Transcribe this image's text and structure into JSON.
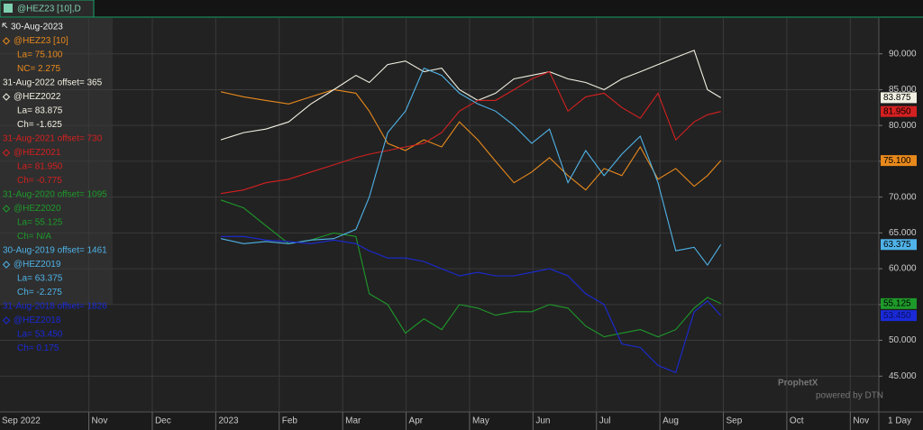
{
  "tab": {
    "label": "@HEZ23 [10],D"
  },
  "chart_data": {
    "type": "line",
    "date": "30-Aug-2023",
    "interval": "1 Day",
    "watermark": {
      "brand": "ProphetX",
      "sub": "powered by DTN"
    },
    "grid": true,
    "xlim": [
      0.6,
      14.45
    ],
    "xticks": [
      {
        "value": 0,
        "label": "Sep 2022"
      },
      {
        "value": 2,
        "label": "Nov"
      },
      {
        "value": 3,
        "label": "Dec"
      },
      {
        "value": 4,
        "label": "2023"
      },
      {
        "value": 5,
        "label": "Feb"
      },
      {
        "value": 6,
        "label": "Mar"
      },
      {
        "value": 7,
        "label": "Apr"
      },
      {
        "value": 8,
        "label": "May"
      },
      {
        "value": 9,
        "label": "Jun"
      },
      {
        "value": 10,
        "label": "Jul"
      },
      {
        "value": 11,
        "label": "Aug"
      },
      {
        "value": 12,
        "label": "Sep"
      },
      {
        "value": 13,
        "label": "Oct"
      },
      {
        "value": 14,
        "label": "Nov"
      }
    ],
    "ylim": [
      40,
      95
    ],
    "yticks": [
      {
        "value": 45,
        "label": "45.000"
      },
      {
        "value": 50,
        "label": "50.000"
      },
      {
        "value": 55,
        "label": "55.000"
      },
      {
        "value": 60,
        "label": "60.000"
      },
      {
        "value": 65,
        "label": "65.000"
      },
      {
        "value": 70,
        "label": "70.000"
      },
      {
        "value": 75,
        "label": "75.000"
      },
      {
        "value": 80,
        "label": "80.000"
      },
      {
        "value": 85,
        "label": "85.000"
      },
      {
        "value": 90,
        "label": "90.000"
      }
    ],
    "x": [
      4.08,
      4.44,
      4.79,
      5.15,
      5.5,
      5.86,
      6.21,
      6.42,
      6.71,
      6.99,
      7.28,
      7.56,
      7.84,
      8.13,
      8.41,
      8.7,
      8.98,
      9.26,
      9.55,
      9.83,
      10.12,
      10.4,
      10.69,
      10.97,
      11.25,
      11.54,
      11.75,
      11.96
    ],
    "series": [
      {
        "name": "@HEZ23 [10]",
        "color": "#e8891c",
        "stats": [
          "La= 75.100",
          "NC= 2.275"
        ],
        "tag": "75.100",
        "values": [
          84.7,
          84.0,
          83.5,
          83.0,
          84.0,
          85.0,
          84.5,
          82.0,
          77.5,
          76.5,
          78.0,
          77.0,
          80.5,
          78.0,
          75.0,
          72.0,
          73.5,
          75.5,
          73.0,
          71.0,
          74.0,
          73.0,
          77.0,
          72.5,
          74.0,
          71.5,
          73.0,
          75.1
        ]
      },
      {
        "name": "@HEZ2022",
        "color": "#f2f0e2",
        "offset_line": "31-Aug-2022 offset= 365",
        "stats": [
          "La= 83.875",
          "Ch= -1.625"
        ],
        "tag": "83.875",
        "values": [
          78.0,
          79.0,
          79.5,
          80.5,
          83.0,
          85.0,
          87.0,
          86.0,
          88.5,
          89.0,
          87.5,
          88.0,
          85.0,
          83.5,
          84.5,
          86.5,
          87.0,
          87.5,
          86.5,
          86.0,
          85.0,
          86.5,
          87.5,
          88.5,
          89.5,
          90.5,
          85.0,
          83.875
        ]
      },
      {
        "name": "@HEZ2021",
        "color": "#d42020",
        "offset_line": "31-Aug-2021 offset= 730",
        "stats": [
          "La= 81.950",
          "Ch= -0.775"
        ],
        "tag": "81.950",
        "values": [
          70.5,
          71.0,
          72.0,
          72.5,
          73.5,
          74.5,
          75.5,
          76.0,
          76.5,
          77.0,
          77.5,
          79.0,
          82.0,
          83.5,
          83.5,
          85.0,
          86.5,
          87.5,
          82.0,
          84.0,
          84.5,
          82.5,
          81.0,
          84.5,
          78.0,
          80.5,
          81.5,
          81.95
        ]
      },
      {
        "name": "@HEZ2020",
        "color": "#1e9a2a",
        "offset_line": "31-Aug-2020 offset= 1095",
        "stats": [
          "La= 55.125",
          "Ch= N/A"
        ],
        "tag": "55.125",
        "values": [
          69.6,
          68.5,
          66.0,
          63.5,
          64.0,
          65.0,
          64.5,
          56.5,
          55.0,
          51.0,
          53.0,
          51.5,
          55.0,
          54.5,
          53.5,
          54.0,
          54.0,
          55.0,
          54.5,
          52.0,
          50.5,
          51.0,
          51.5,
          50.5,
          51.5,
          54.5,
          56.0,
          55.125
        ]
      },
      {
        "name": "@HEZ2019",
        "color": "#4fb3e8",
        "offset_line": "30-Aug-2019 offset= 1461",
        "stats": [
          "La= 63.375",
          "Ch= -2.275"
        ],
        "tag": "63.375",
        "values": [
          64.2,
          63.5,
          63.8,
          63.5,
          64.0,
          64.2,
          65.5,
          70.0,
          79.0,
          82.0,
          88.0,
          87.0,
          84.5,
          83.0,
          82.0,
          80.0,
          77.5,
          79.5,
          72.0,
          76.5,
          73.0,
          76.0,
          78.5,
          72.0,
          62.5,
          63.0,
          60.5,
          63.375
        ]
      },
      {
        "name": "@HEZ2018",
        "color": "#1a2ad8",
        "offset_line": "31-Aug-2018 offset= 1826",
        "stats": [
          "La= 53.450",
          "Ch= 0.175"
        ],
        "tag": "53.450",
        "values": [
          64.5,
          64.5,
          64.0,
          63.8,
          63.5,
          64.0,
          63.5,
          62.5,
          61.5,
          61.5,
          61.0,
          60.0,
          59.0,
          59.5,
          59.0,
          59.0,
          59.5,
          60.0,
          59.0,
          56.5,
          55.0,
          49.5,
          49.0,
          46.5,
          45.5,
          54.0,
          55.5,
          53.45
        ]
      }
    ]
  }
}
